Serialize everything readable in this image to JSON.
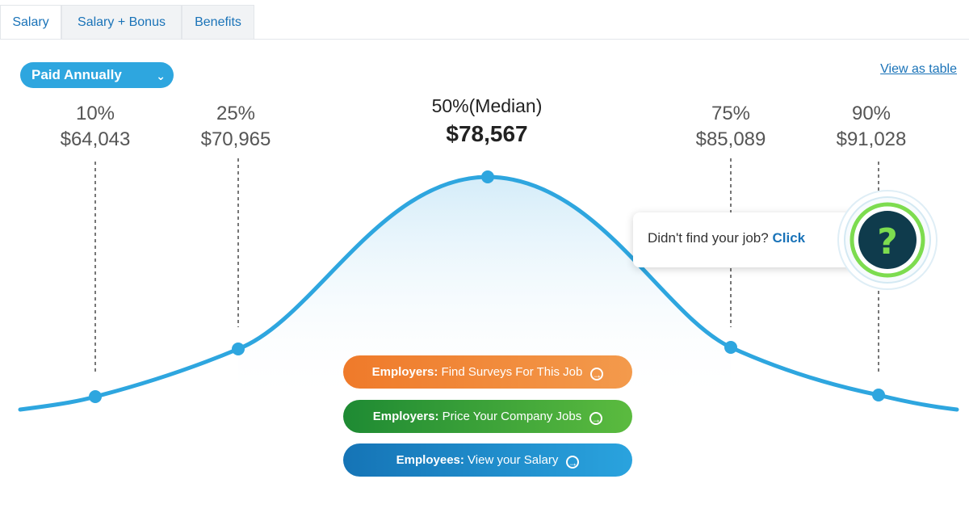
{
  "tabs": [
    {
      "label": "Salary"
    },
    {
      "label": "Salary + Bonus"
    },
    {
      "label": "Benefits"
    }
  ],
  "pay_period": {
    "label": "Paid Annually",
    "icon": "chevron-down-icon"
  },
  "view_table": {
    "label": "View as table"
  },
  "percentiles": [
    {
      "label": "10%",
      "value": "$64,043"
    },
    {
      "label": "25%",
      "value": "$70,965"
    },
    {
      "label": "50%(Median)",
      "value": "$78,567"
    },
    {
      "label": "75%",
      "value": "$85,089"
    },
    {
      "label": "90%",
      "value": "$91,028"
    }
  ],
  "buttons": {
    "employers_surveys": {
      "prefix": "Employers:",
      "text": "Find Surveys For This Job"
    },
    "employers_price": {
      "prefix": "Employers:",
      "text": "Price Your Company Jobs"
    },
    "employees_view": {
      "prefix": "Employees:",
      "text": "View your Salary"
    }
  },
  "help_popup": {
    "text": "Didn't find your job?",
    "link": "Click",
    "icon": "question-mark-icon"
  },
  "colors": {
    "curve": "#2ea6df",
    "orange_button": "#ef7a2a",
    "green_button": "#1e8a33",
    "blue_button": "#1574b6",
    "link": "#1a73b8",
    "help_ring": "#7ddc4f",
    "help_fill": "#0f3b4c"
  }
}
